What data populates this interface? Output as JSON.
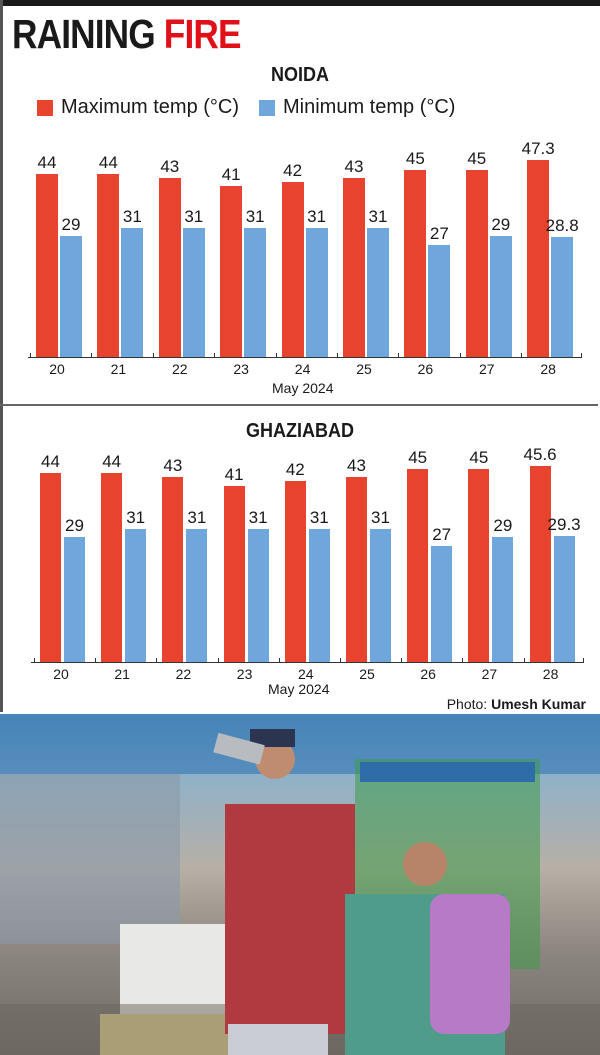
{
  "headline": {
    "part1": "RAINING ",
    "part2": "FIRE",
    "accent_color": "#e01019"
  },
  "legend": {
    "max_label": "Maximum temp (°C)",
    "min_label": "Minimum temp (°C)",
    "max_color": "#e8432e",
    "min_color": "#6fa6dc"
  },
  "noida": {
    "title": "NOIDA",
    "xtitle": "May 2024"
  },
  "ghaziabad": {
    "title": "GHAZIABAD",
    "xtitle": "May 2024"
  },
  "credit": {
    "prefix": "Photo: ",
    "name": "Umesh Kumar"
  },
  "photo": {
    "description": "Man drinking from steel bottle and woman with purple backpack walking through a market street"
  },
  "chart_data": [
    {
      "type": "bar",
      "title": "NOIDA",
      "categories": [
        "20",
        "21",
        "22",
        "23",
        "24",
        "25",
        "26",
        "27",
        "28"
      ],
      "series": [
        {
          "name": "Maximum temp (°C)",
          "color": "#e8432e",
          "values": [
            44,
            44,
            43,
            41,
            42,
            43,
            45,
            45,
            47.3
          ],
          "labels": [
            "44",
            "44",
            "43",
            "41",
            "42",
            "43",
            "45",
            "45",
            "47.3"
          ]
        },
        {
          "name": "Minimum temp (°C)",
          "color": "#6fa6dc",
          "values": [
            29,
            31,
            31,
            31,
            31,
            31,
            27,
            29,
            28.8
          ],
          "labels": [
            "29",
            "31",
            "31",
            "31",
            "31",
            "31",
            "27",
            "29",
            "28.8"
          ]
        }
      ],
      "xlabel": "May 2024",
      "ylabel": "",
      "legend_position": "top",
      "grid": false
    },
    {
      "type": "bar",
      "title": "GHAZIABAD",
      "categories": [
        "20",
        "21",
        "22",
        "23",
        "24",
        "25",
        "26",
        "27",
        "28"
      ],
      "series": [
        {
          "name": "Maximum temp (°C)",
          "color": "#e8432e",
          "values": [
            44,
            44,
            43,
            41,
            42,
            43,
            45,
            45,
            45.6
          ],
          "labels": [
            "44",
            "44",
            "43",
            "41",
            "42",
            "43",
            "45",
            "45",
            "45.6"
          ]
        },
        {
          "name": "Minimum temp (°C)",
          "color": "#6fa6dc",
          "values": [
            29,
            31,
            31,
            31,
            31,
            31,
            27,
            29,
            29.3
          ],
          "labels": [
            "29",
            "31",
            "31",
            "31",
            "31",
            "31",
            "27",
            "29",
            "29.3"
          ]
        }
      ],
      "xlabel": "May 2024",
      "ylabel": "",
      "legend_position": "top",
      "grid": false
    }
  ]
}
